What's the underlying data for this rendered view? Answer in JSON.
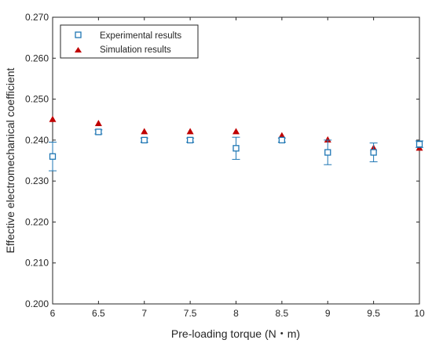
{
  "chart_data": {
    "type": "scatter",
    "xlabel": "Pre-loading torque (N・m)",
    "ylabel": "Effective electromechanical coefficient",
    "xlim": [
      6,
      10
    ],
    "ylim": [
      0.2,
      0.27
    ],
    "x_ticks": [
      "6",
      "6.5",
      "7",
      "7.5",
      "8",
      "8.5",
      "9",
      "9.5",
      "10"
    ],
    "y_ticks": [
      "0.200",
      "0.210",
      "0.220",
      "0.230",
      "0.240",
      "0.250",
      "0.260",
      "0.270"
    ],
    "grid": false,
    "legend_position": "top-left",
    "series": [
      {
        "name": "Experimental results",
        "marker": "square-open",
        "color": "#1f77b4",
        "x": [
          6,
          6.5,
          7,
          7.5,
          8,
          8.5,
          9,
          9.5,
          10
        ],
        "y": [
          0.236,
          0.242,
          0.24,
          0.24,
          0.238,
          0.24,
          0.237,
          0.237,
          0.239
        ],
        "error": [
          0.0035,
          0.0005,
          0.0005,
          0.0005,
          0.0027,
          0.0005,
          0.003,
          0.0023,
          0.0008
        ]
      },
      {
        "name": "Simulation results",
        "marker": "triangle",
        "color": "#c00000",
        "x": [
          6,
          6.5,
          7,
          7.5,
          8,
          8.5,
          9,
          9.5,
          10
        ],
        "y": [
          0.245,
          0.244,
          0.242,
          0.242,
          0.242,
          0.241,
          0.24,
          0.238,
          0.238
        ]
      }
    ]
  }
}
